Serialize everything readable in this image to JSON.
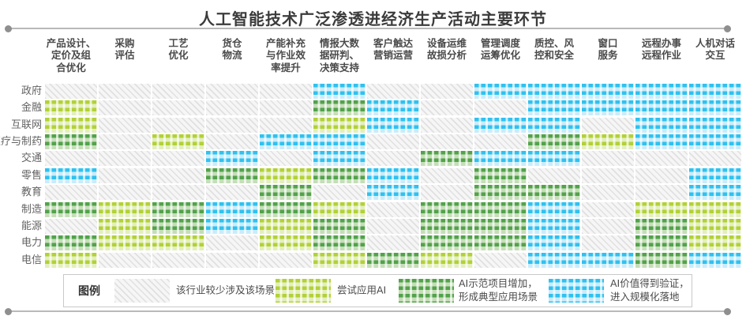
{
  "title": "人工智能技术广泛渗透进经济生产活动主要环节",
  "legend": {
    "title": "图例",
    "items": [
      {
        "label": "该行业较少涉及该场景",
        "level": 0
      },
      {
        "label": "尝试应用AI",
        "level": 1
      },
      {
        "label": "AI示范项目增加，\n形成典型应用场景",
        "level": 2
      },
      {
        "label": "AI价值得到验证，\n进入规模化落地",
        "level": 3
      }
    ]
  },
  "colors": {
    "none_hatch": "#e0e0e0",
    "trial_green": "#b2d138",
    "demo_green": "#53a24b",
    "scale_blue": "#30c1ef",
    "title_text": "#3b3b3b",
    "rule_gray": "#b9b9b9"
  },
  "chart_data": {
    "type": "heatmap",
    "title": "人工智能技术广泛渗透进经济生产活动主要环节",
    "columns": [
      "产品设计、\n定价及组\n合优化",
      "采购\n评估",
      "工艺\n优化",
      "货仓\n物流",
      "产能补充\n与作业效\n率提升",
      "情报大数\n据研判、\n决策支持",
      "客户触达\n营销运营",
      "设备运维\n故损分析",
      "管理调度\n运筹优化",
      "质控、风\n控和安全",
      "窗口\n服务",
      "远程办事\n远程作业",
      "人机对话\n交互"
    ],
    "rows": [
      "政府",
      "金融",
      "互联网",
      "医疗与制药",
      "交通",
      "零售",
      "教育",
      "制造",
      "能源",
      "电力",
      "电信"
    ],
    "levels": [
      {
        "code": 0,
        "label": "该行业较少涉及该场景"
      },
      {
        "code": 1,
        "label": "尝试应用AI"
      },
      {
        "code": 2,
        "label": "AI示范项目增加，形成典型应用场景"
      },
      {
        "code": 3,
        "label": "AI价值得到验证，进入规模化落地"
      }
    ],
    "matrix": [
      [
        0,
        0,
        0,
        0,
        0,
        3,
        0,
        0,
        3,
        3,
        3,
        3,
        3
      ],
      [
        1,
        0,
        0,
        0,
        0,
        2,
        3,
        0,
        0,
        3,
        3,
        3,
        3
      ],
      [
        1,
        0,
        0,
        0,
        0,
        1,
        3,
        0,
        3,
        3,
        0,
        3,
        3
      ],
      [
        2,
        0,
        1,
        0,
        3,
        3,
        0,
        0,
        0,
        2,
        1,
        3,
        3
      ],
      [
        0,
        0,
        0,
        3,
        0,
        3,
        0,
        2,
        3,
        3,
        0,
        0,
        0
      ],
      [
        3,
        0,
        0,
        2,
        1,
        2,
        3,
        0,
        2,
        0,
        0,
        0,
        3
      ],
      [
        0,
        0,
        0,
        0,
        2,
        0,
        3,
        0,
        2,
        2,
        0,
        0,
        3
      ],
      [
        2,
        1,
        2,
        3,
        2,
        1,
        0,
        2,
        2,
        3,
        0,
        1,
        1
      ],
      [
        0,
        1,
        2,
        3,
        1,
        2,
        0,
        2,
        2,
        3,
        0,
        2,
        1
      ],
      [
        2,
        1,
        1,
        0,
        1,
        2,
        0,
        2,
        2,
        3,
        0,
        2,
        1
      ],
      [
        1,
        0,
        0,
        0,
        0,
        1,
        2,
        1,
        0,
        3,
        3,
        2,
        3
      ]
    ],
    "legend_position": "bottom",
    "grid": false
  }
}
